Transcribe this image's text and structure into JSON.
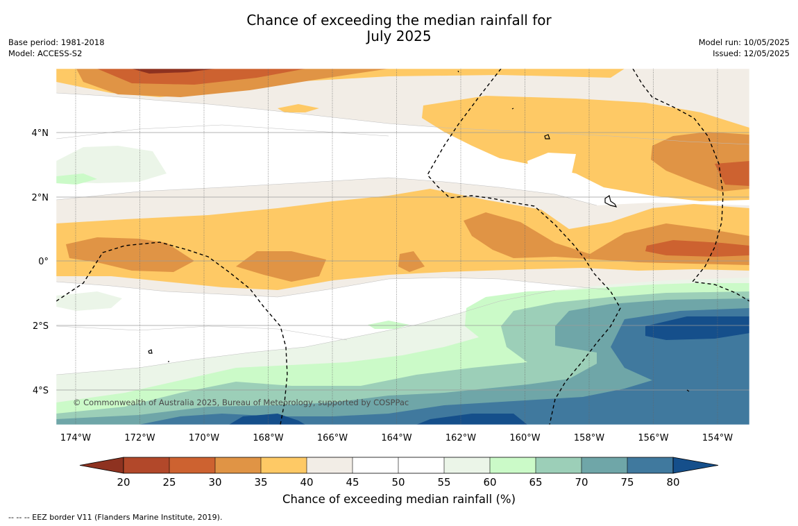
{
  "title_line1": "Chance of exceeding the median rainfall for",
  "title_line2": "July 2025",
  "base_period": "Base period: 1981-2018",
  "model": "Model: ACCESS-S2",
  "model_run": "Model run: 10/05/2025",
  "issued": "Issued: 12/05/2025",
  "copyright": "© Commonwealth of Australia 2025, Bureau of Meteorology, supported by COSPPac",
  "footer": "--  --  -- EEZ border V11 (Flanders Marine Institute, 2019).",
  "map": {
    "lon_labels": [
      "174°W",
      "172°W",
      "170°W",
      "168°W",
      "166°W",
      "164°W",
      "162°W",
      "160°W",
      "158°W",
      "156°W",
      "154°W"
    ],
    "lat_labels": [
      "4°N",
      "2°N",
      "0°",
      "2°S",
      "4°S"
    ]
  },
  "colorbar": {
    "title": "Chance of exceeding median rainfall (%)",
    "ticks": [
      "20",
      "25",
      "30",
      "35",
      "40",
      "45",
      "50",
      "55",
      "60",
      "65",
      "70",
      "75",
      "80"
    ],
    "colors": {
      "below20": "#8e3220",
      "20-25": "#b2482a",
      "25-30": "#cd6230",
      "30-35": "#e09445",
      "35-40": "#fec965",
      "40-45": "#f2ede6",
      "45-50": "#ffffff",
      "50-55": "#ffffff",
      "55-60": "#ebf5e8",
      "60-65": "#cbfac8",
      "65-70": "#9ccfb8",
      "70-75": "#6fa6a8",
      "75-80": "#40799e",
      "above80": "#154f8b"
    }
  }
}
